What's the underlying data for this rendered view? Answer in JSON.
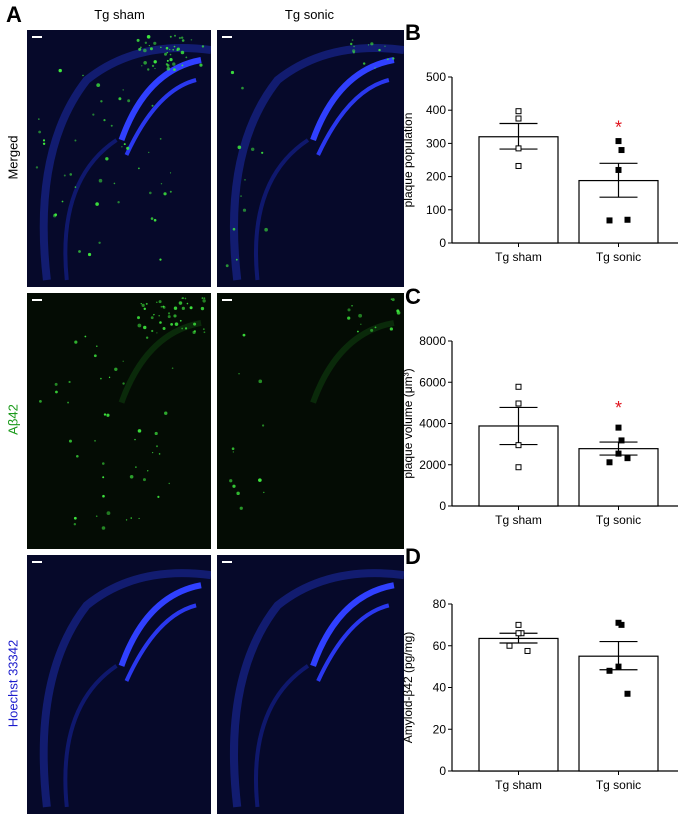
{
  "panel_labels": [
    "A",
    "B",
    "C",
    "D"
  ],
  "columns": [
    "Tg sham",
    "Tg sonic"
  ],
  "rows": [
    {
      "label": "Merged",
      "color": "#000000",
      "channel": "merged"
    },
    {
      "label": "Aβ42",
      "color": "#1a9a1a",
      "channel": "green"
    },
    {
      "label": "Hoechst 33342",
      "color": "#1a1acc",
      "channel": "blue"
    }
  ],
  "colors": {
    "significance": "#e0141e",
    "bar_fill": "#ffffff",
    "axis": "#000000"
  },
  "chart_data": [
    {
      "panel": "B",
      "type": "bar",
      "categories": [
        "Tg sham",
        "Tg sonic"
      ],
      "ylabel": "plaque population",
      "ylim": [
        0,
        500
      ],
      "yticks": [
        0,
        100,
        200,
        300,
        400,
        500
      ],
      "means": [
        320,
        188
      ],
      "sem_upper": [
        360,
        240
      ],
      "sem_lower": [
        283,
        138
      ],
      "points": [
        [
          397,
          375,
          285,
          232
        ],
        [
          307,
          280,
          220,
          68,
          70
        ]
      ],
      "significance": [
        "",
        "*"
      ]
    },
    {
      "panel": "C",
      "type": "bar",
      "categories": [
        "Tg sham",
        "Tg sonic"
      ],
      "ylabel": "plaque volume (μm³)",
      "ylim": [
        0,
        8000
      ],
      "yticks": [
        0,
        2000,
        4000,
        6000,
        8000
      ],
      "means": [
        3880,
        2780
      ],
      "sem_upper": [
        4780,
        3100
      ],
      "sem_lower": [
        2980,
        2470
      ],
      "points": [
        [
          5780,
          4970,
          2950,
          1880
        ],
        [
          3800,
          3180,
          2540,
          2120,
          2320
        ]
      ],
      "significance": [
        "",
        "*"
      ]
    },
    {
      "panel": "D",
      "type": "bar",
      "categories": [
        "Tg sham",
        "Tg sonic"
      ],
      "ylabel": "Amyloid-β42 (pg/mg)",
      "ylim": [
        0,
        80
      ],
      "yticks": [
        0,
        20,
        40,
        60,
        80
      ],
      "means": [
        63.5,
        55
      ],
      "sem_upper": [
        66,
        62
      ],
      "sem_lower": [
        61.3,
        48.5
      ],
      "points": [
        [
          70,
          66,
          66,
          60,
          57.5
        ],
        [
          71,
          70,
          50,
          48,
          37
        ]
      ],
      "significance": [
        "",
        ""
      ]
    }
  ]
}
